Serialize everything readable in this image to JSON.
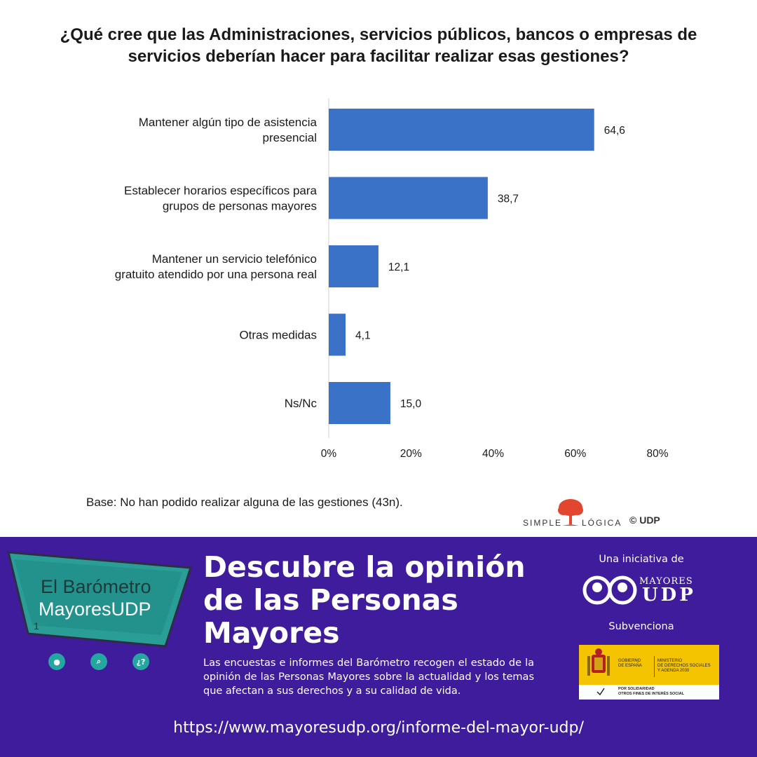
{
  "chart_data": {
    "type": "bar",
    "orientation": "horizontal",
    "title": "¿Qué cree que las Administraciones, servicios públicos, bancos o empresas de servicios deberían hacer para facilitar realizar esas gestiones?",
    "categories": [
      [
        "Mantener algún tipo de asistencia",
        "presencial"
      ],
      [
        "Establecer horarios específicos para",
        "grupos de personas mayores"
      ],
      [
        "Mantener un servicio telefónico",
        "gratuito atendido por una persona real"
      ],
      [
        "Otras medidas"
      ],
      [
        "Ns/Nc"
      ]
    ],
    "values": [
      64.6,
      38.7,
      12.1,
      4.1,
      15.0
    ],
    "value_labels": [
      "64,6",
      "38,7",
      "12,1",
      "4,1",
      "15,0"
    ],
    "xlim": [
      0,
      80
    ],
    "xticks": [
      0,
      20,
      40,
      60,
      80
    ],
    "xtick_labels": [
      "0%",
      "20%",
      "40%",
      "60%",
      "80%"
    ],
    "bar_color": "#3a72c8",
    "grid": false
  },
  "note": "Base: No han podido realizar alguna de las gestiones (43n).",
  "brand": {
    "simple": "SIMPLE",
    "logica": "LÓGICA",
    "copyright": "© UDP"
  },
  "banner": {
    "background": "#3f1c9c",
    "logo_line1": "El Barómetro",
    "logo_line2": "MayoresUDP",
    "logo_number": "1",
    "icons": [
      {
        "name": "user-icon",
        "glyph": "●"
      },
      {
        "name": "search-icon",
        "glyph": "⌕"
      },
      {
        "name": "question-icon",
        "glyph": "¿?"
      }
    ],
    "headline": "Descubre la opinión de las Personas Mayores",
    "description": "Las encuestas e informes del Barómetro recogen el estado de la opinión de las Personas Mayores sobre la actualidad y los temas que afectan a sus derechos y a su calidad de vida.",
    "url": "https://www.mayoresudp.org/informe-del-mayor-udp/",
    "initiative": "Una iniciativa de",
    "udp_mayores": "MAYORES",
    "udp_udp": "UDP",
    "subvenciona": "Subvenciona",
    "gov_left": "GOBIERNO\nDE ESPAÑA",
    "gov_right": "MINISTERIO\nDE DERECHOS SOCIALES\nY AGENDA 2030",
    "gov_bottom": "POR SOLIDARIDAD\nOTROS FINES DE INTERÉS SOCIAL"
  }
}
